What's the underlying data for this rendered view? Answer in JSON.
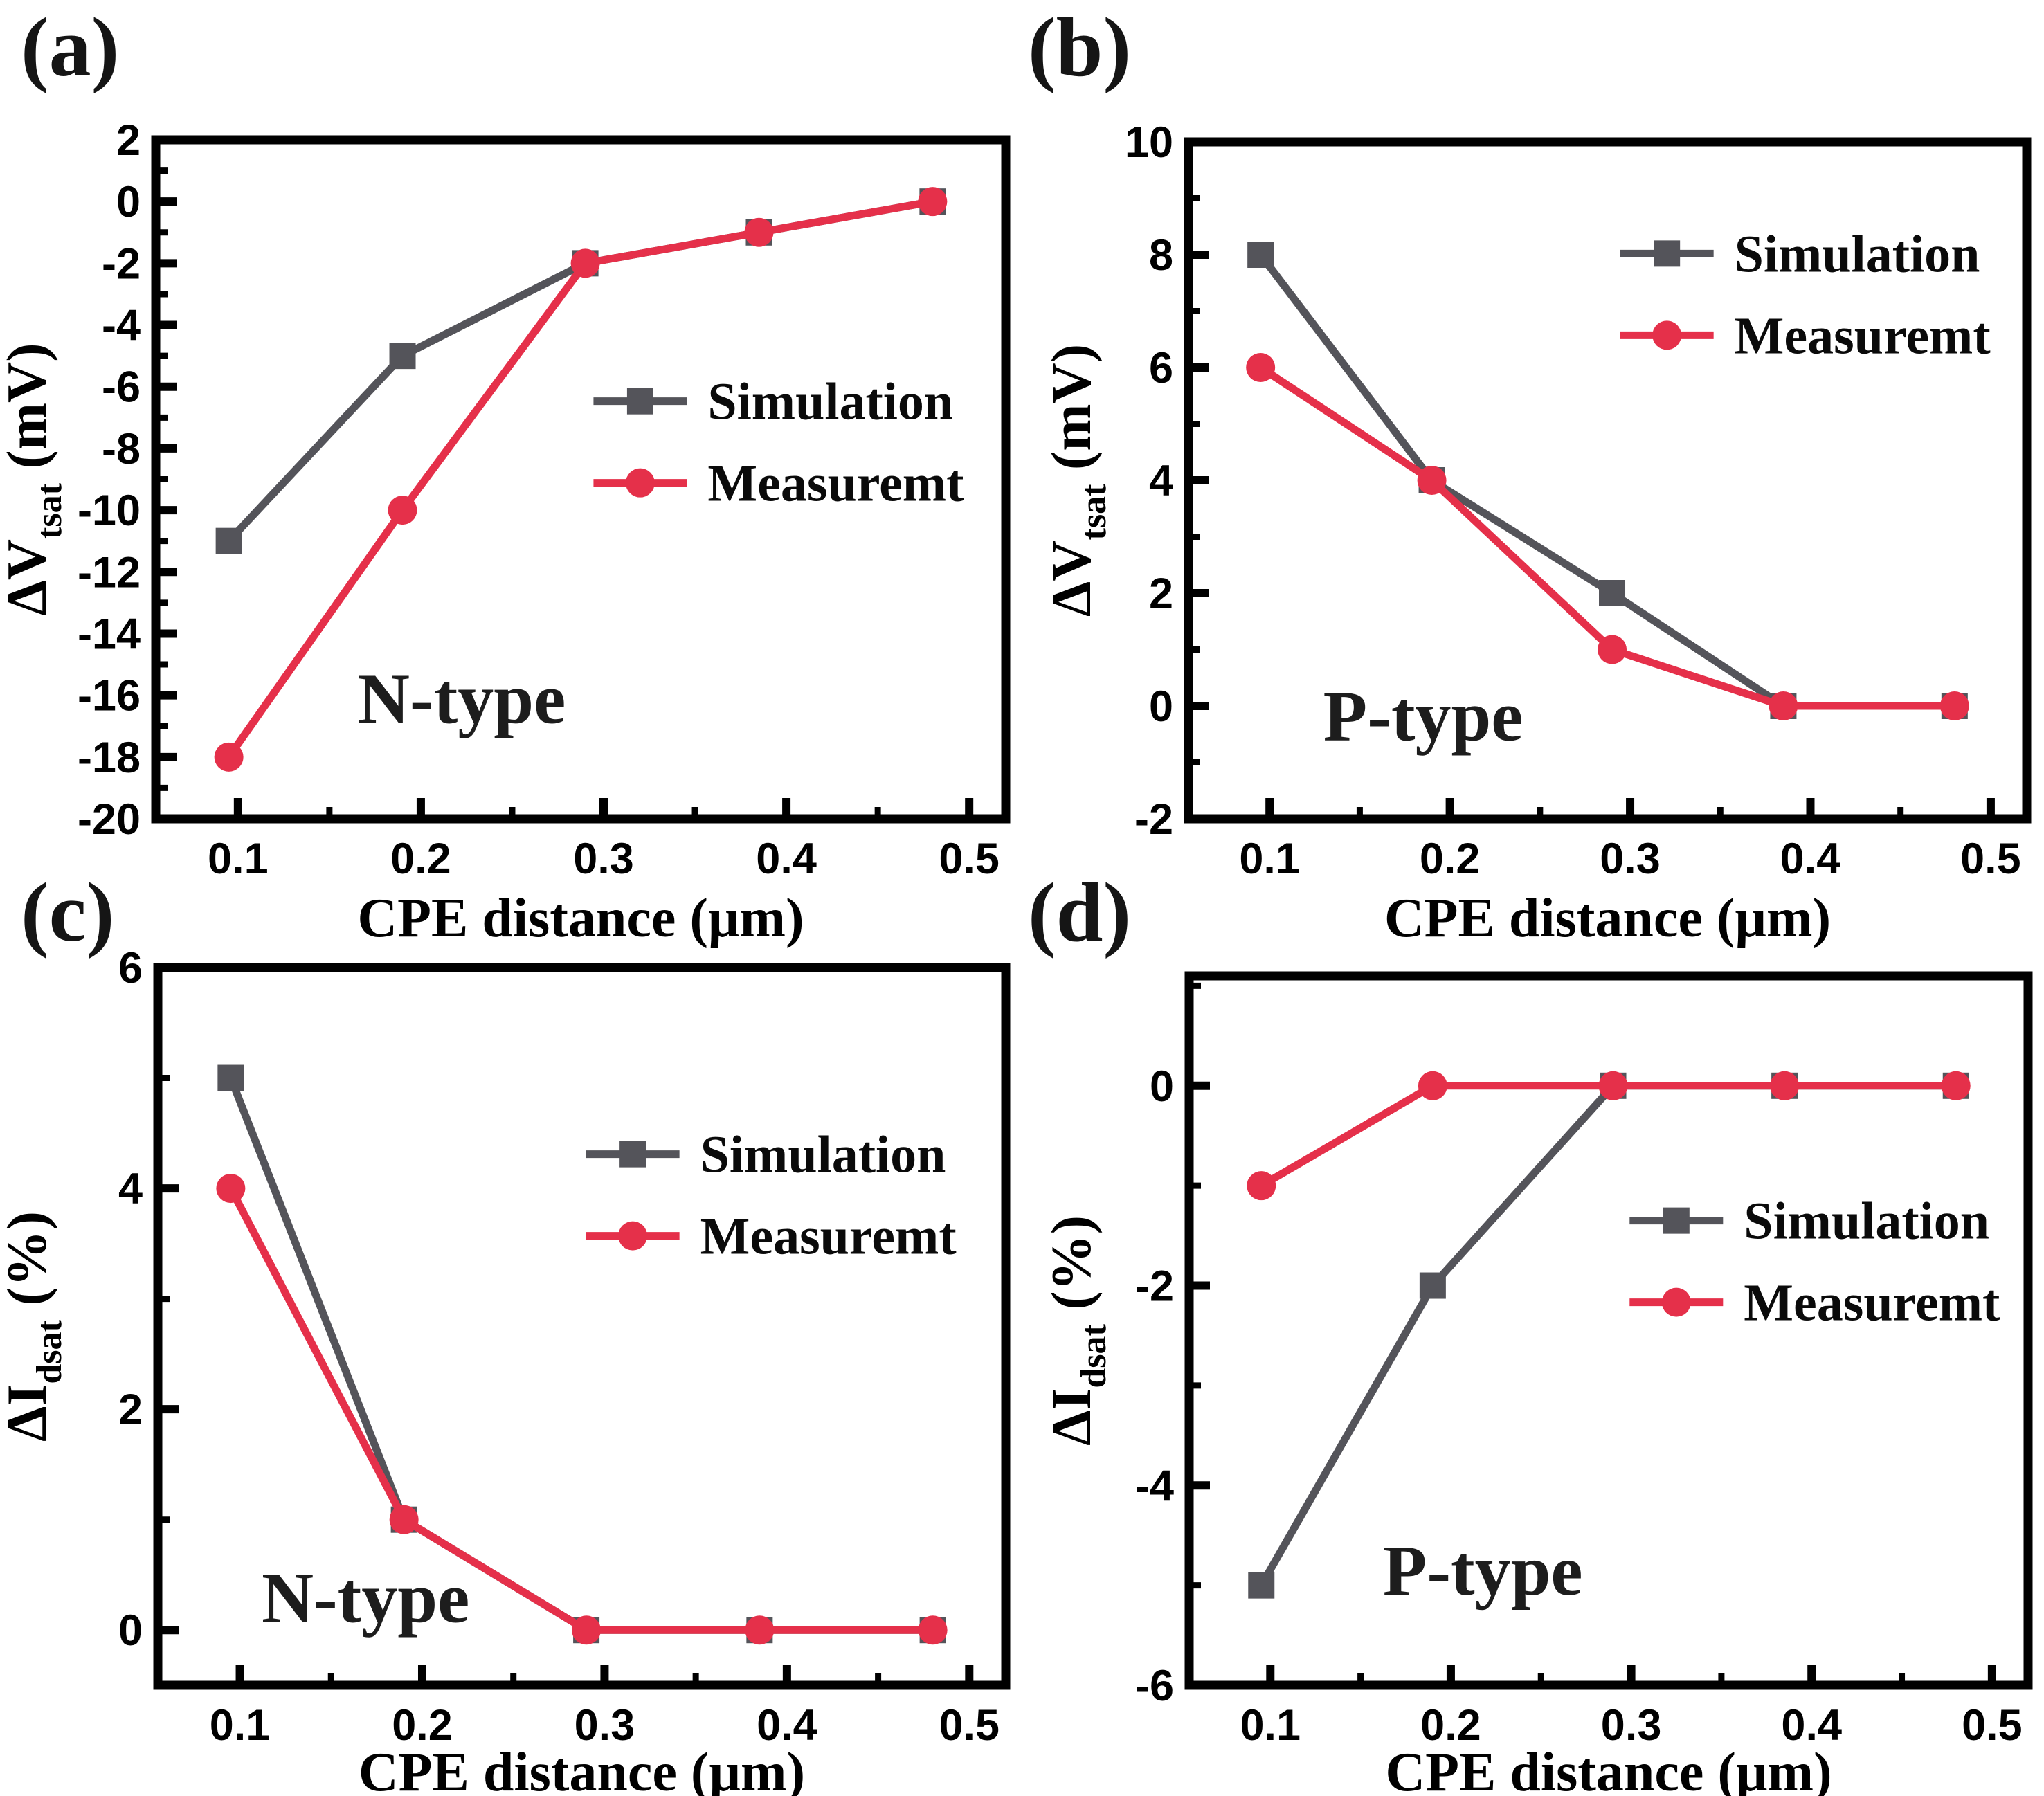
{
  "figure": {
    "background": "#ffffff",
    "panel_tags": [
      "(a)",
      "(b)",
      "(c)",
      "(d)"
    ]
  },
  "colors": {
    "simulation": "#54545a",
    "measurement": "#e5304a",
    "axis": "#000000",
    "tick_text": "#000000",
    "legend_text": "#0a0a0a",
    "type_label_text": "#1d1d1d"
  },
  "legend": {
    "simulation_label": "Simulation",
    "measurement_label": "Measuremt"
  },
  "chart_data": [
    {
      "panel": "(a)",
      "type": "line",
      "type_label": "N-type",
      "xlabel": "CPE distance (μm)",
      "ylabel": {
        "prefix": "ΔV",
        "sub": "tsat",
        "suffix": " (mV)"
      },
      "x": [
        0.095,
        0.19,
        0.29,
        0.385,
        0.48
      ],
      "series": [
        {
          "name": "Simulation",
          "key": "simulation",
          "marker": "square",
          "values": [
            -11,
            -5,
            -2,
            -1,
            0
          ]
        },
        {
          "name": "Measuremt",
          "key": "measurement",
          "marker": "circle",
          "values": [
            -18,
            -10,
            -2,
            -1,
            0
          ]
        }
      ],
      "xlim": [
        0.055,
        0.52
      ],
      "ylim": [
        -20,
        2
      ],
      "xticks": [
        0.1,
        0.2,
        0.3,
        0.4,
        0.5
      ],
      "yticks": [
        2,
        0,
        -2,
        -4,
        -6,
        -8,
        -10,
        -12,
        -14,
        -16,
        -18,
        -20
      ],
      "grid": false,
      "legend_border": false,
      "legend_pos": {
        "x": 0.515,
        "y": 0.385
      },
      "type_label_pos": {
        "x": 0.36,
        "y": 0.82
      }
    },
    {
      "panel": "(b)",
      "type": "line",
      "type_label": "P-type",
      "xlabel": "CPE distance (μm)",
      "ylabel": {
        "prefix": "ΔV",
        "sub": "tsat",
        "suffix": "  (mV)"
      },
      "x": [
        0.095,
        0.19,
        0.29,
        0.385,
        0.48
      ],
      "series": [
        {
          "name": "Simulation",
          "key": "simulation",
          "marker": "square",
          "values": [
            8,
            4,
            2,
            0,
            0
          ]
        },
        {
          "name": "Measuremt",
          "key": "measurement",
          "marker": "circle",
          "values": [
            6,
            4,
            1,
            0,
            0
          ]
        }
      ],
      "xlim": [
        0.055,
        0.52
      ],
      "ylim": [
        -2,
        10
      ],
      "xticks": [
        0.1,
        0.2,
        0.3,
        0.4,
        0.5
      ],
      "yticks": [
        10,
        8,
        6,
        4,
        2,
        0,
        -2
      ],
      "grid": false,
      "legend_border": false,
      "legend_pos": {
        "x": 0.515,
        "y": 0.165
      },
      "type_label_pos": {
        "x": 0.28,
        "y": 0.845
      }
    },
    {
      "panel": "(c)",
      "type": "line",
      "type_label": "N-type",
      "xlabel": "CPE distance (μm)",
      "ylabel": {
        "prefix": "ΔI",
        "sub": "dsat",
        "suffix": "  (%)"
      },
      "x": [
        0.095,
        0.19,
        0.29,
        0.385,
        0.48
      ],
      "series": [
        {
          "name": "Simulation",
          "key": "simulation",
          "marker": "square",
          "values": [
            5,
            1,
            0,
            0,
            0
          ]
        },
        {
          "name": "Measuremt",
          "key": "measurement",
          "marker": "circle",
          "values": [
            4,
            1,
            0,
            0,
            0
          ]
        }
      ],
      "xlim": [
        0.055,
        0.52
      ],
      "ylim": [
        -0.5,
        6
      ],
      "xticks": [
        0.1,
        0.2,
        0.3,
        0.4,
        0.5
      ],
      "yticks": [
        6,
        4,
        2,
        0
      ],
      "grid": false,
      "legend_border": false,
      "legend_pos": {
        "x": 0.505,
        "y": 0.26
      },
      "type_label_pos": {
        "x": 0.245,
        "y": 0.875
      }
    },
    {
      "panel": "(d)",
      "type": "line",
      "type_label": "P-type",
      "xlabel": "CPE distance (μm)",
      "ylabel": {
        "prefix": "ΔI",
        "sub": "dsat",
        "suffix": "  (%)"
      },
      "x": [
        0.095,
        0.19,
        0.29,
        0.385,
        0.48
      ],
      "series": [
        {
          "name": "Simulation",
          "key": "simulation",
          "marker": "square",
          "values": [
            -5,
            -2,
            0,
            0,
            0
          ]
        },
        {
          "name": "Measuremt",
          "key": "measurement",
          "marker": "circle",
          "values": [
            -1,
            0,
            0,
            0,
            0
          ]
        }
      ],
      "xlim": [
        0.055,
        0.52
      ],
      "ylim": [
        -6,
        1.1
      ],
      "xticks": [
        0.1,
        0.2,
        0.3,
        0.4,
        0.5
      ],
      "yticks": [
        0,
        -2,
        -4,
        -6
      ],
      "grid": false,
      "legend_border": false,
      "legend_pos": {
        "x": 0.525,
        "y": 0.345
      },
      "type_label_pos": {
        "x": 0.35,
        "y": 0.835
      }
    }
  ]
}
